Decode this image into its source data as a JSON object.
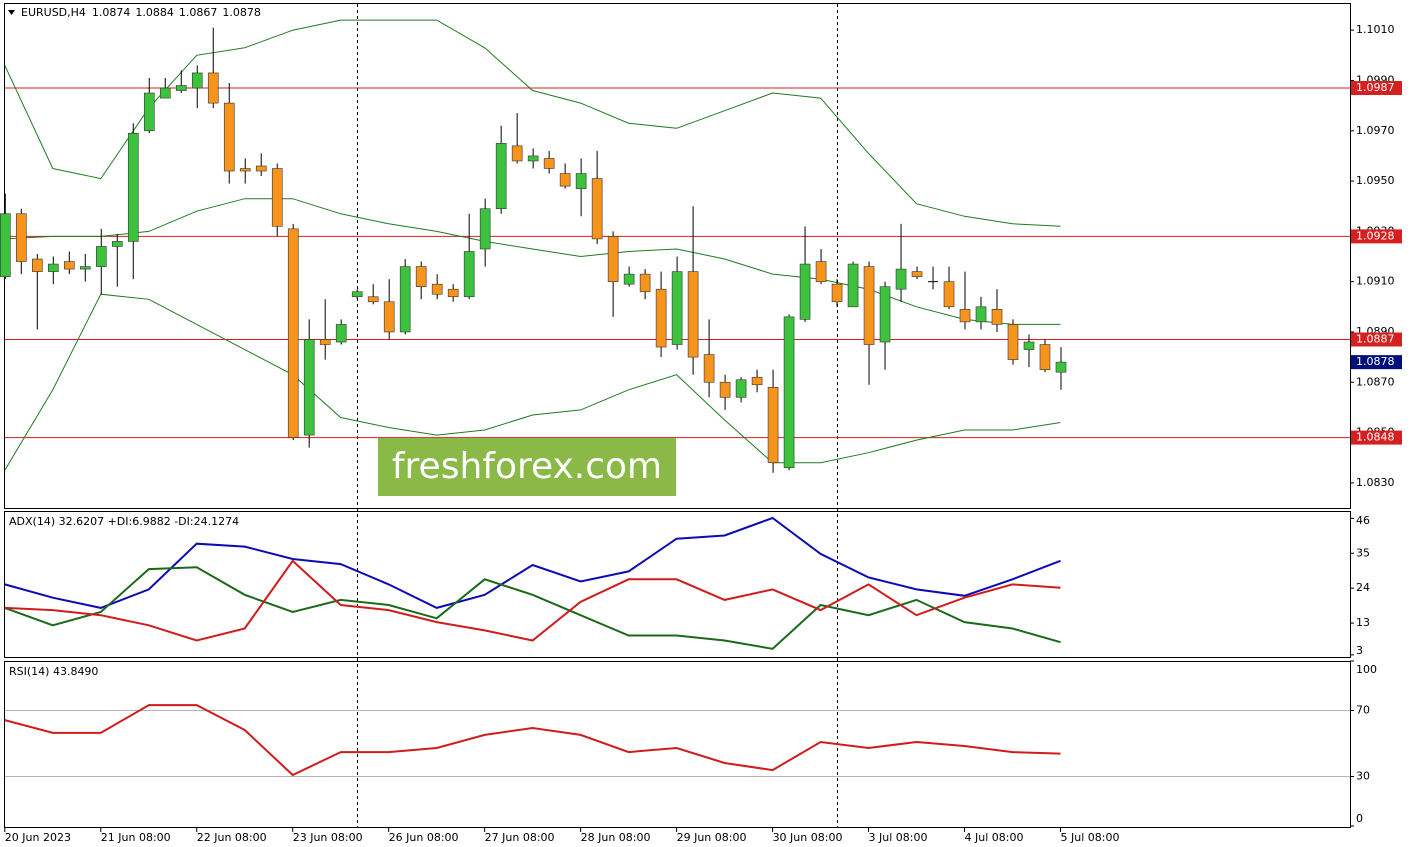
{
  "chart_data": [
    {
      "type": "candlestick",
      "title": "EURUSD,H4",
      "xlim": [
        -0.3,
        84.1
      ],
      "ylim": [
        1.082,
        1.1022
      ],
      "open": [
        1.0912,
        1.0937,
        1.0919,
        1.0914,
        1.0918,
        1.0915,
        1.0916,
        1.0924,
        1.0926,
        1.097,
        1.0983,
        1.0986,
        1.0987,
        1.0993,
        1.0981,
        1.0955,
        1.0956,
        1.0955,
        1.0931,
        1.0849,
        1.0887,
        1.0886,
        1.0904,
        1.0904,
        1.0902,
        1.089,
        1.0916,
        1.0909,
        1.0907,
        1.0904,
        1.0923,
        1.0939,
        1.0964,
        1.0958,
        1.0959,
        1.0953,
        1.0947,
        1.0951,
        1.0928,
        1.0909,
        1.0913,
        1.0907,
        1.0885,
        1.0914,
        1.0881,
        1.087,
        1.0864,
        1.0872,
        1.0868,
        1.0836,
        1.0895,
        1.0918,
        1.0909,
        1.09,
        1.0916,
        1.0886,
        1.0907,
        1.0914,
        1.091,
        1.091,
        1.0899,
        1.0894,
        1.0899,
        1.0893,
        1.0883,
        1.0885,
        1.0874
      ],
      "high": [
        1.0945,
        1.0939,
        1.0921,
        1.092,
        1.0922,
        1.0921,
        1.0931,
        1.0929,
        1.0973,
        1.0991,
        1.0991,
        1.0994,
        1.0996,
        1.1011,
        1.0989,
        1.0959,
        1.0961,
        1.0957,
        1.0933,
        1.0895,
        1.0903,
        1.0895,
        1.0907,
        1.0909,
        1.0911,
        1.0919,
        1.0918,
        1.0913,
        1.0909,
        1.0937,
        1.0943,
        1.0972,
        1.0977,
        1.0963,
        1.0962,
        1.0957,
        1.0959,
        1.0962,
        1.093,
        1.0916,
        1.0915,
        1.0914,
        1.092,
        1.094,
        1.0895,
        1.0873,
        1.0872,
        1.0875,
        1.0875,
        1.0897,
        1.0932,
        1.0923,
        1.0911,
        1.0918,
        1.0918,
        1.091,
        1.0933,
        1.0916,
        1.0916,
        1.0916,
        1.0914,
        1.0904,
        1.0907,
        1.0895,
        1.0889,
        1.0887,
        1.0884
      ],
      "low": [
        1.0911,
        1.0913,
        1.0891,
        1.0909,
        1.0913,
        1.091,
        1.0905,
        1.0908,
        1.0911,
        1.0969,
        1.0983,
        1.0985,
        1.0979,
        1.0979,
        1.0949,
        1.0949,
        1.0952,
        1.0928,
        1.0847,
        1.0844,
        1.0879,
        1.0885,
        1.0903,
        1.0901,
        1.0887,
        1.0889,
        1.0903,
        1.0903,
        1.0902,
        1.0903,
        1.0916,
        1.0937,
        1.0957,
        1.0955,
        1.0953,
        1.0947,
        1.0936,
        1.0925,
        1.0896,
        1.0908,
        1.0903,
        1.088,
        1.0883,
        1.0873,
        1.0864,
        1.0859,
        1.0862,
        1.0866,
        1.0834,
        1.0835,
        1.0894,
        1.0909,
        1.09,
        1.09,
        1.0869,
        1.0875,
        1.0902,
        1.0911,
        1.0907,
        1.0899,
        1.0891,
        1.0891,
        1.089,
        1.0877,
        1.0876,
        1.0874,
        1.0867
      ],
      "close": [
        1.0937,
        1.0918,
        1.0914,
        1.0917,
        1.0915,
        1.0916,
        1.0924,
        1.0926,
        1.0969,
        1.0985,
        1.0987,
        1.0988,
        1.0993,
        1.0981,
        1.0954,
        1.0954,
        1.0954,
        1.0932,
        1.0848,
        1.0887,
        1.0885,
        1.0893,
        1.0906,
        1.0902,
        1.089,
        1.0916,
        1.0908,
        1.0905,
        1.0904,
        1.0922,
        1.0939,
        1.0965,
        1.0958,
        1.096,
        1.0955,
        1.0948,
        1.0953,
        1.0927,
        1.091,
        1.0913,
        1.0906,
        1.0884,
        1.0914,
        1.088,
        1.087,
        1.0864,
        1.0871,
        1.0869,
        1.0838,
        1.0896,
        1.0917,
        1.091,
        1.0902,
        1.0917,
        1.0885,
        1.0908,
        1.0915,
        1.0912,
        1.091,
        1.09,
        1.0894,
        1.09,
        1.0893,
        1.0879,
        1.0886,
        1.0875,
        1.0878
      ],
      "up_color": "#3cc23c",
      "down_color": "#f7941d",
      "overlay_x": [
        0,
        3,
        6,
        9,
        12,
        15,
        18,
        21,
        24,
        27,
        30,
        33,
        36,
        39,
        42,
        45,
        48,
        51,
        54,
        57,
        60,
        63,
        66
      ],
      "overlays": [
        {
          "color": "#227a22",
          "values": [
            1.0996,
            1.0955,
            1.0951,
            1.0979,
            1.1,
            1.1003,
            1.101,
            1.1014,
            1.1014,
            1.1014,
            1.1003,
            1.0986,
            1.0981,
            1.0973,
            1.0971,
            1.0978,
            1.0985,
            1.0983,
            1.0961,
            1.0941,
            1.0936,
            1.0933,
            1.0932
          ]
        },
        {
          "color": "#227a22",
          "values": [
            1.0927,
            1.0928,
            1.0928,
            1.093,
            1.0938,
            1.0943,
            1.0943,
            1.0937,
            1.0933,
            1.093,
            1.0926,
            1.0923,
            1.092,
            1.0922,
            1.0923,
            1.0919,
            1.0913,
            1.0911,
            1.0907,
            1.09,
            1.0895,
            1.0893,
            1.0893
          ]
        },
        {
          "color": "#227a22",
          "values": [
            1.0835,
            1.0867,
            1.0905,
            1.0903,
            1.0893,
            1.0883,
            1.0873,
            1.0856,
            1.0852,
            1.0849,
            1.0851,
            1.0857,
            1.0859,
            1.0867,
            1.0873,
            1.0855,
            1.0838,
            1.0838,
            1.0842,
            1.0847,
            1.0851,
            1.0851,
            1.0854
          ]
        }
      ],
      "levels": [
        1.0987,
        1.0928,
        1.0887,
        1.0848
      ],
      "level_color": "#d42020",
      "last_price_color": "#00107a",
      "yticks": [
        {
          "value": 1.101,
          "label": "1.1010"
        },
        {
          "value": 1.099,
          "label": "1.0990"
        },
        {
          "value": 1.097,
          "label": "1.0970"
        },
        {
          "value": 1.095,
          "label": "1.0950"
        },
        {
          "value": 1.093,
          "label": "1.0930"
        },
        {
          "value": 1.091,
          "label": "1.0910"
        },
        {
          "value": 1.089,
          "label": "1.0890"
        },
        {
          "value": 1.087,
          "label": "1.0870"
        },
        {
          "value": 1.085,
          "label": "1.0850"
        },
        {
          "value": 1.083,
          "label": "1.0830"
        }
      ],
      "watermark": "freshforex.com"
    },
    {
      "type": "line",
      "title": "ADX(14) 32.6207 +DI:6.9882 -DI:24.1274",
      "xlim": [
        -0.3,
        84.1
      ],
      "ylim": [
        2,
        48
      ],
      "yticks": [
        46,
        35,
        24,
        13,
        3
      ],
      "x": [
        0,
        3,
        6,
        9,
        12,
        15,
        18,
        21,
        24,
        27,
        30,
        33,
        36,
        39,
        42,
        45,
        48,
        51,
        54,
        57,
        60,
        63,
        66
      ],
      "series": [
        {
          "color": "#0c0cb0",
          "values": [
            25.2,
            21.0,
            17.8,
            23.6,
            38.0,
            37.1,
            33.2,
            31.6,
            25.2,
            17.8,
            21.9,
            31.3,
            26.1,
            29.3,
            39.6,
            40.6,
            46.1,
            34.8,
            27.4,
            23.6,
            21.6,
            26.8,
            32.6207
          ]
        },
        {
          "color": "#1a6a1a",
          "values": [
            17.8,
            12.3,
            16.5,
            30.0,
            30.6,
            21.9,
            16.5,
            20.3,
            18.7,
            14.5,
            26.8,
            21.9,
            15.5,
            9.1,
            9.1,
            7.5,
            4.9,
            18.7,
            15.5,
            20.3,
            13.3,
            11.3,
            6.9882
          ]
        },
        {
          "color": "#d01c1c",
          "values": [
            17.8,
            17.1,
            15.5,
            12.3,
            7.5,
            11.3,
            32.6,
            18.7,
            17.1,
            13.3,
            10.7,
            7.5,
            19.7,
            26.8,
            26.8,
            20.3,
            23.6,
            17.1,
            25.2,
            15.5,
            21.0,
            25.2,
            24.1274
          ]
        }
      ]
    },
    {
      "type": "line",
      "title": "RSI(14) 43.8490",
      "xlim": [
        -0.3,
        84.1
      ],
      "ylim": [
        0,
        100
      ],
      "yticks": [
        100,
        70,
        30,
        0
      ],
      "levels": [
        70,
        30
      ],
      "level_color": "#b4b4b4",
      "x": [
        0,
        3,
        6,
        9,
        12,
        15,
        18,
        21,
        24,
        27,
        30,
        33,
        36,
        39,
        42,
        45,
        48,
        51,
        54,
        57,
        60,
        63,
        66
      ],
      "series": [
        {
          "color": "#d01c1c",
          "values": [
            64.2,
            56.4,
            56.4,
            73.3,
            73.3,
            58.2,
            30.9,
            44.8,
            44.8,
            47.3,
            55.2,
            59.4,
            55.2,
            44.8,
            47.3,
            38.2,
            33.9,
            50.9,
            47.3,
            50.9,
            48.5,
            44.8,
            43.849
          ]
        }
      ],
      "xticks": [
        {
          "value": 0,
          "label": "20 Jun 2023"
        },
        {
          "value": 6,
          "label": "21 Jun 08:00"
        },
        {
          "value": 12,
          "label": "22 Jun 08:00"
        },
        {
          "value": 18,
          "label": "23 Jun 08:00"
        },
        {
          "value": 24,
          "label": "26 Jun 08:00"
        },
        {
          "value": 30,
          "label": "27 Jun 08:00"
        },
        {
          "value": 36,
          "label": "28 Jun 08:00"
        },
        {
          "value": 42,
          "label": "29 Jun 08:00"
        },
        {
          "value": 48,
          "label": "30 Jun 08:00"
        },
        {
          "value": 54,
          "label": "3 Jul 08:00"
        },
        {
          "value": 60,
          "label": "4 Jul 08:00"
        },
        {
          "value": 66,
          "label": "5 Jul 08:00"
        }
      ]
    }
  ]
}
